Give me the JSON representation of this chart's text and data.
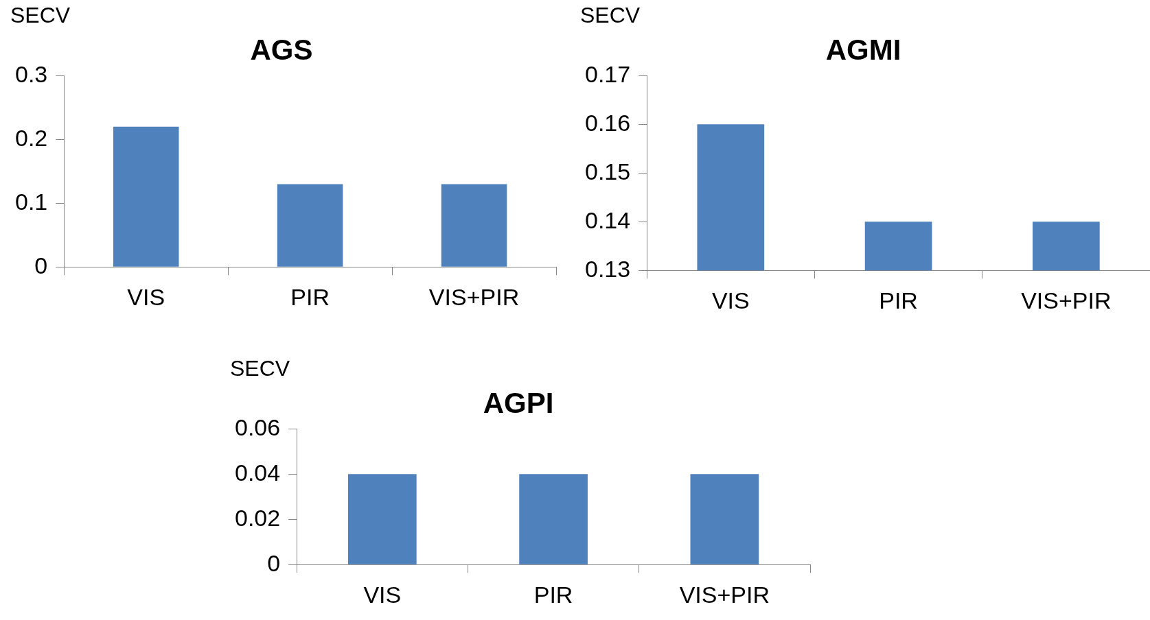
{
  "chart_data": [
    {
      "type": "bar",
      "title": "AGS",
      "ylabel": "SECV",
      "categories": [
        "VIS",
        "PIR",
        "VIS+PIR"
      ],
      "values": [
        0.22,
        0.13,
        0.13
      ],
      "color": "#4f81bd",
      "ylim": [
        0,
        0.3
      ],
      "yticks": [
        0,
        0.1,
        0.2,
        0.3
      ],
      "grid": false,
      "legend": false
    },
    {
      "type": "bar",
      "title": "AGMI",
      "ylabel": "SECV",
      "categories": [
        "VIS",
        "PIR",
        "VIS+PIR"
      ],
      "values": [
        0.16,
        0.14,
        0.14
      ],
      "color": "#4f81bd",
      "ylim": [
        0.13,
        0.17
      ],
      "yticks": [
        0.13,
        0.14,
        0.15,
        0.16,
        0.17
      ],
      "grid": false,
      "legend": false
    },
    {
      "type": "bar",
      "title": "AGPI",
      "ylabel": "SECV",
      "categories": [
        "VIS",
        "PIR",
        "VIS+PIR"
      ],
      "values": [
        0.04,
        0.04,
        0.04
      ],
      "color": "#4f81bd",
      "ylim": [
        0,
        0.06
      ],
      "yticks": [
        0,
        0.02,
        0.04,
        0.06
      ],
      "grid": false,
      "legend": false
    }
  ]
}
